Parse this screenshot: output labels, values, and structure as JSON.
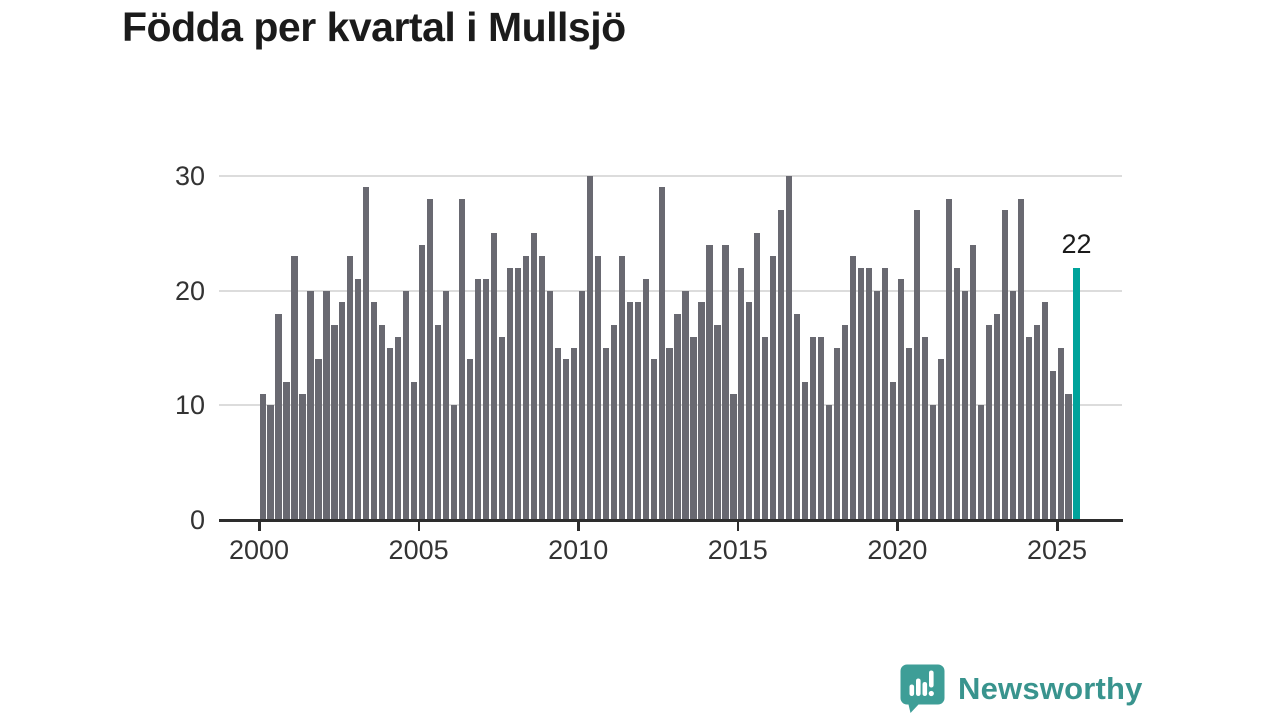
{
  "title": "Födda per kvartal i Mullsjö",
  "logo": {
    "text": "Newsworthy",
    "icon": "newsworthy-speech-bubble-chart-icon"
  },
  "colors": {
    "bar": "#696971",
    "highlight": "#00a39b",
    "grid": "#dcdcdc",
    "axis": "#2d2d2d",
    "tick_label": "#333333",
    "title": "#1b1b1b",
    "value_label": "#1b1b1b",
    "brand_text": "#39948e",
    "brand_bubble": "#3e9e97"
  },
  "chart_data": {
    "type": "bar",
    "title": "Födda per kvartal i Mullsjö",
    "ylim": [
      0,
      30
    ],
    "yticks": [
      0,
      10,
      20,
      30
    ],
    "xticks": [
      "2000",
      "2005",
      "2010",
      "2015",
      "2020",
      "2025"
    ],
    "grid": "horizontal",
    "legend": "none",
    "series_by_year": [
      {
        "year": 2000,
        "values": [
          11,
          10,
          18,
          12
        ]
      },
      {
        "year": 2001,
        "values": [
          23,
          11,
          20,
          14
        ]
      },
      {
        "year": 2002,
        "values": [
          20,
          17,
          19,
          23
        ]
      },
      {
        "year": 2003,
        "values": [
          21,
          29,
          19,
          17
        ]
      },
      {
        "year": 2004,
        "values": [
          15,
          16,
          20,
          12
        ]
      },
      {
        "year": 2005,
        "values": [
          24,
          28,
          17,
          20
        ]
      },
      {
        "year": 2006,
        "values": [
          10,
          28,
          14,
          21
        ]
      },
      {
        "year": 2007,
        "values": [
          21,
          25,
          16,
          22
        ]
      },
      {
        "year": 2008,
        "values": [
          22,
          23,
          25,
          23
        ]
      },
      {
        "year": 2009,
        "values": [
          20,
          15,
          14,
          15
        ]
      },
      {
        "year": 2010,
        "values": [
          20,
          30,
          23,
          15
        ]
      },
      {
        "year": 2011,
        "values": [
          17,
          23,
          19,
          19
        ]
      },
      {
        "year": 2012,
        "values": [
          21,
          14,
          29,
          15
        ]
      },
      {
        "year": 2013,
        "values": [
          18,
          20,
          16,
          19
        ]
      },
      {
        "year": 2014,
        "values": [
          24,
          17,
          24,
          11
        ]
      },
      {
        "year": 2015,
        "values": [
          22,
          19,
          25,
          16
        ]
      },
      {
        "year": 2016,
        "values": [
          23,
          27,
          30,
          18
        ]
      },
      {
        "year": 2017,
        "values": [
          12,
          16,
          16,
          10
        ]
      },
      {
        "year": 2018,
        "values": [
          15,
          17,
          23,
          22
        ]
      },
      {
        "year": 2019,
        "values": [
          22,
          20,
          22,
          12
        ]
      },
      {
        "year": 2020,
        "values": [
          21,
          15,
          27,
          16
        ]
      },
      {
        "year": 2021,
        "values": [
          10,
          14,
          28,
          22
        ]
      },
      {
        "year": 2022,
        "values": [
          20,
          24,
          10,
          17
        ]
      },
      {
        "year": 2023,
        "values": [
          18,
          27,
          20,
          28
        ]
      },
      {
        "year": 2024,
        "values": [
          16,
          17,
          19,
          13
        ]
      },
      {
        "year": 2025,
        "values": [
          15,
          11,
          22
        ]
      }
    ],
    "highlight": {
      "year": 2025,
      "quarter": "Q3",
      "value": 22,
      "label": "22"
    }
  }
}
